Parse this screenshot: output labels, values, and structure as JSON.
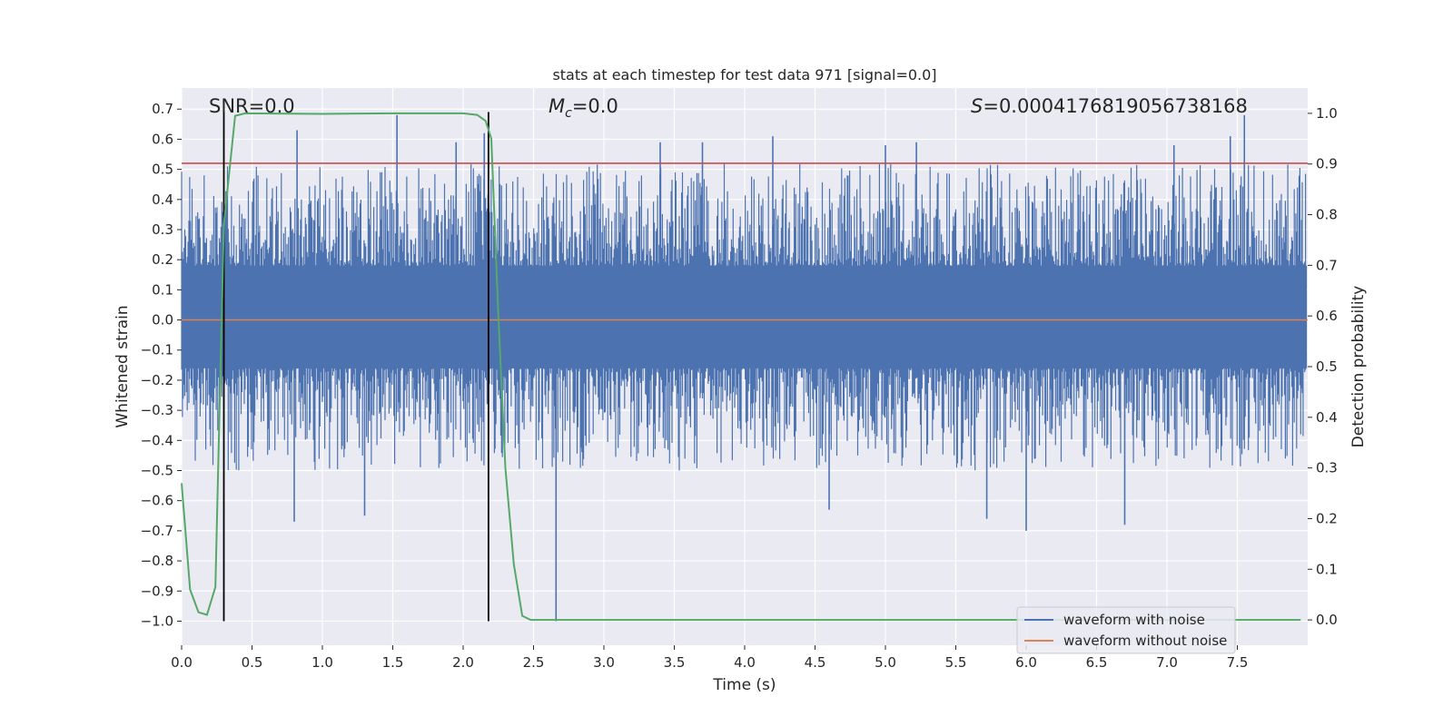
{
  "chart_data": {
    "type": "line",
    "title": "stats at each timestep for test data 971 [signal=0.0]",
    "xlabel": "Time (s)",
    "ylabel": "Whitened strain",
    "y2label": "Detection probability",
    "xlim": [
      0.0,
      8.0
    ],
    "ylim": [
      -1.08,
      0.77
    ],
    "y2lim": [
      -0.05,
      1.05
    ],
    "x_ticks": [
      0.0,
      0.5,
      1.0,
      1.5,
      2.0,
      2.5,
      3.0,
      3.5,
      4.0,
      4.5,
      5.0,
      5.5,
      6.0,
      6.5,
      7.0,
      7.5
    ],
    "x_tick_labels": [
      "0.0",
      "0.5",
      "1.0",
      "1.5",
      "2.0",
      "2.5",
      "3.0",
      "3.5",
      "4.0",
      "4.5",
      "5.0",
      "5.5",
      "6.0",
      "6.5",
      "7.0",
      "7.5"
    ],
    "y_ticks": [
      0.7,
      0.6,
      0.5,
      0.4,
      0.3,
      0.2,
      0.1,
      0.0,
      -0.1,
      -0.2,
      -0.3,
      -0.4,
      -0.5,
      -0.6,
      -0.7,
      -0.8,
      -0.9,
      -1.0
    ],
    "y_tick_labels": [
      "0.7",
      "0.6",
      "0.5",
      "0.4",
      "0.3",
      "0.2",
      "0.1",
      "0.0",
      "−0.1",
      "−0.2",
      "−0.3",
      "−0.4",
      "−0.5",
      "−0.6",
      "−0.7",
      "−0.8",
      "−0.9",
      "−1.0"
    ],
    "y2_ticks": [
      1.0,
      0.9,
      0.8,
      0.7,
      0.6,
      0.5,
      0.4,
      0.3,
      0.2,
      0.1,
      0.0
    ],
    "y2_tick_labels": [
      "1.0",
      "0.9",
      "0.8",
      "0.7",
      "0.6",
      "0.5",
      "0.4",
      "0.3",
      "0.2",
      "0.1",
      "0.0"
    ],
    "grid": true,
    "legend_position": "bottom-right",
    "annotations": {
      "snr": "SNR=0.0",
      "mc_symbol": "M",
      "mc_sub": "c",
      "mc_value": "=0.0",
      "s_symbol": "S",
      "s_value": "=0.0004176819056738168"
    },
    "series": [
      {
        "name": "waveform with noise",
        "color": "#4c72b0",
        "style": "noise",
        "core_band": [
          -0.16,
          0.18
        ],
        "spikes": [
          [
            0.82,
            0.63
          ],
          [
            0.8,
            -0.67
          ],
          [
            1.3,
            -0.65
          ],
          [
            1.53,
            0.68
          ],
          [
            1.95,
            0.59
          ],
          [
            2.15,
            0.62
          ],
          [
            2.66,
            -1.0
          ],
          [
            3.4,
            0.59
          ],
          [
            3.7,
            0.59
          ],
          [
            4.2,
            0.61
          ],
          [
            4.6,
            -0.63
          ],
          [
            5.0,
            0.58
          ],
          [
            5.22,
            0.59
          ],
          [
            5.72,
            -0.66
          ],
          [
            6.0,
            -0.7
          ],
          [
            6.7,
            -0.68
          ],
          [
            7.05,
            0.58
          ],
          [
            7.55,
            0.68
          ],
          [
            7.45,
            0.61
          ]
        ]
      },
      {
        "name": "waveform without noise",
        "color": "#dd8452",
        "x": [
          0.0,
          8.0
        ],
        "y": [
          0.0,
          0.0
        ]
      },
      {
        "name": "detection probability",
        "color": "#55a868",
        "axis": "right",
        "x": [
          0.0,
          0.06,
          0.12,
          0.18,
          0.24,
          0.3,
          0.38,
          0.45,
          1.0,
          1.5,
          2.0,
          2.1,
          2.16,
          2.2,
          2.25,
          2.3,
          2.36,
          2.42,
          2.48,
          2.6,
          3.0,
          4.0,
          5.0,
          6.0,
          7.0,
          7.95
        ],
        "y": [
          0.27,
          0.06,
          0.015,
          0.01,
          0.065,
          0.78,
          0.995,
          1.0,
          0.999,
          1.0,
          1.0,
          0.997,
          0.985,
          0.95,
          0.6,
          0.3,
          0.11,
          0.008,
          0.0,
          0.0,
          0.0,
          0.0,
          0.0,
          0.0,
          0.0,
          0.0
        ]
      }
    ],
    "hlines": [
      {
        "y": 0.52,
        "color": "#c44e52"
      }
    ],
    "vlines": [
      {
        "x": 0.3,
        "color": "#000000",
        "range": [
          -1.0,
          0.69
        ]
      },
      {
        "x": 2.18,
        "color": "#000000",
        "range": [
          -1.0,
          0.69
        ]
      }
    ],
    "legend": [
      {
        "label": "waveform with noise",
        "color": "#4c72b0"
      },
      {
        "label": "waveform without noise",
        "color": "#dd8452"
      }
    ]
  }
}
